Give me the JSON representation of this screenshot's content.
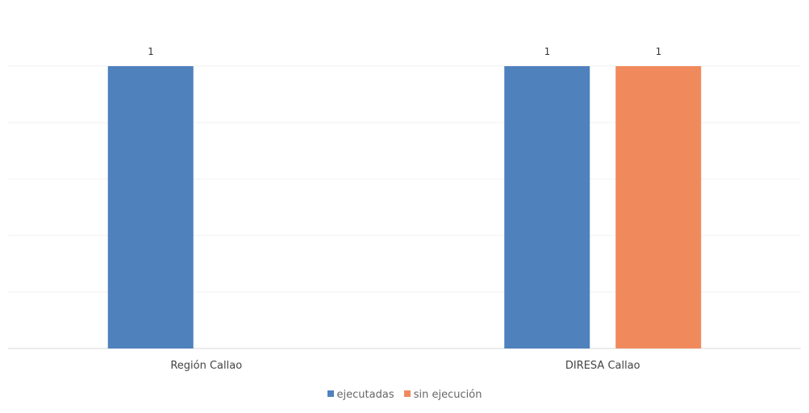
{
  "chart_data": {
    "type": "bar",
    "categories": [
      "Región Callao",
      "DIRESA Callao"
    ],
    "series": [
      {
        "name": "ejecutadas",
        "values": [
          1,
          1
        ],
        "color": "#4F81BD"
      },
      {
        "name": "sin ejecución",
        "values": [
          null,
          1
        ],
        "color": "#F08A5D"
      }
    ],
    "data_labels": true,
    "ylim": [
      0,
      1
    ],
    "gridlines": true,
    "legend_position": "bottom"
  }
}
